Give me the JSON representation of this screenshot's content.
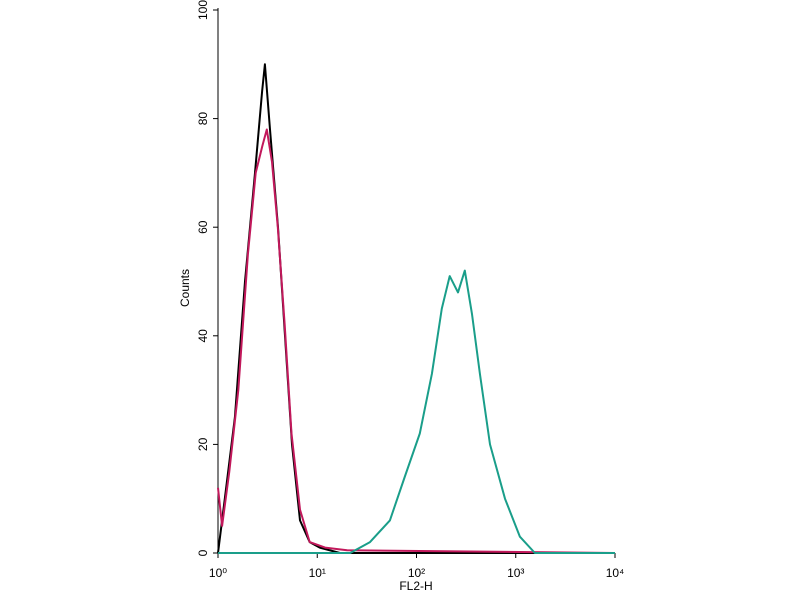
{
  "chart_data": {
    "type": "line",
    "xlabel": "FL2-H",
    "ylabel": "Counts",
    "xscale": "log",
    "xlim": [
      1,
      10000
    ],
    "xticks": [
      {
        "value": 1,
        "label": "10⁰"
      },
      {
        "value": 10,
        "label": "10¹"
      },
      {
        "value": 100,
        "label": "10²"
      },
      {
        "value": 1000,
        "label": "10³"
      },
      {
        "value": 10000,
        "label": "10⁴"
      }
    ],
    "ylim": [
      0,
      100
    ],
    "yticks": [
      0,
      20,
      40,
      60,
      80,
      100
    ],
    "series": [
      {
        "color": "#000000",
        "x": [
          1,
          1.17,
          1.48,
          1.87,
          2.36,
          2.78,
          2.97,
          3.34,
          4.02,
          4.73,
          5.57,
          6.7,
          8.4,
          10.6,
          16.9,
          10000
        ],
        "values": [
          0,
          10,
          25,
          50,
          70,
          85,
          90,
          78,
          60,
          40,
          20,
          6,
          2,
          1,
          0,
          0
        ]
      },
      {
        "color": "#c2185b",
        "x": [
          1,
          1.1,
          1.3,
          1.6,
          2.0,
          2.4,
          2.8,
          3.1,
          3.5,
          4.0,
          4.7,
          5.5,
          6.7,
          8.4,
          12,
          20,
          10000
        ],
        "values": [
          12,
          5,
          15,
          30,
          55,
          70,
          75,
          78,
          72,
          60,
          42,
          22,
          8,
          2,
          1,
          0.5,
          0
        ]
      },
      {
        "color": "#1a9e8a",
        "x": [
          1,
          21.5,
          34,
          54,
          76,
          108,
          143,
          180,
          216,
          262,
          307,
          362,
          435,
          550,
          780,
          1100,
          1560,
          10000
        ],
        "values": [
          0,
          0,
          2,
          6,
          14,
          22,
          33,
          45,
          51,
          48,
          52,
          44,
          33,
          20,
          10,
          3,
          0,
          0
        ]
      }
    ]
  }
}
